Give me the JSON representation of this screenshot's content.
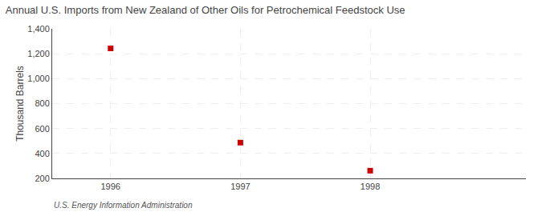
{
  "chart_data": {
    "type": "scatter",
    "title": "Annual U.S. Imports from New Zealand of Other Oils for Petrochemical Feedstock Use",
    "ylabel": "Thousand Barrels",
    "annotations": [
      "U.S. Energy Information Administration"
    ],
    "x": [
      1996,
      1997,
      1998
    ],
    "values": [
      1243,
      487,
      262
    ],
    "color": "#cc0000",
    "marker": "square",
    "xlim": [
      1995.55,
      1999.2
    ],
    "xticks": [
      1996,
      1997,
      1998
    ],
    "ylim": [
      200,
      1400
    ],
    "yticks": [
      200,
      400,
      600,
      800,
      {
        "value": 1000,
        "label": "1,000"
      },
      {
        "value": 1200,
        "label": "1,200"
      },
      {
        "value": 1400,
        "label": "1,400"
      }
    ],
    "grid": true
  }
}
